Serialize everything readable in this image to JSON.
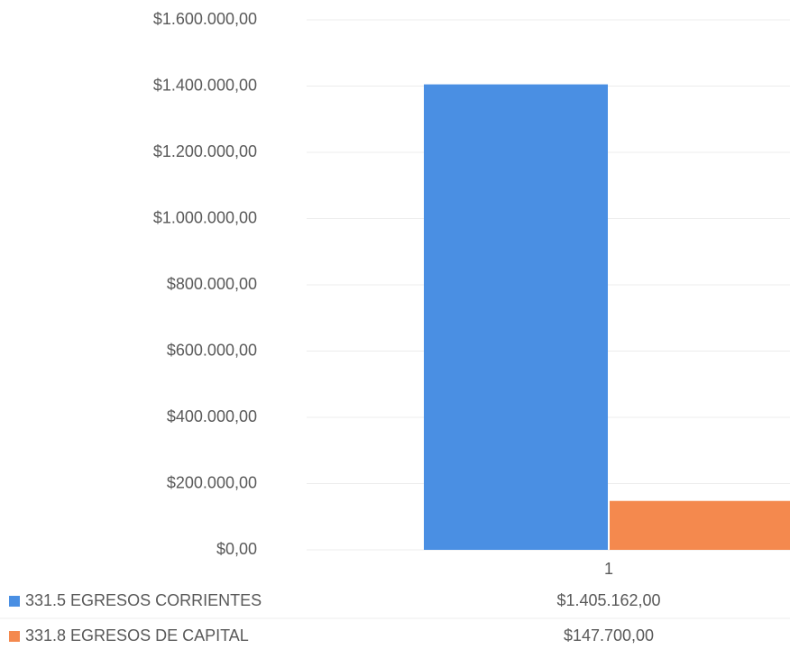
{
  "chart_data": {
    "type": "bar",
    "categories": [
      "1"
    ],
    "series": [
      {
        "name": "331.5 EGRESOS CORRIENTES",
        "color": "#4a8fe3",
        "values": [
          1405162
        ],
        "value_labels": [
          "$1.405.162,00"
        ]
      },
      {
        "name": "331.8 EGRESOS DE CAPITAL",
        "color": "#f4894e",
        "values": [
          147700
        ],
        "value_labels": [
          "$147.700,00"
        ]
      }
    ],
    "ylim": [
      0,
      1600000
    ],
    "yticks": [
      {
        "value": 0,
        "label": "$0,00"
      },
      {
        "value": 200000,
        "label": "$200.000,00"
      },
      {
        "value": 400000,
        "label": "$400.000,00"
      },
      {
        "value": 600000,
        "label": "$600.000,00"
      },
      {
        "value": 800000,
        "label": "$800.000,00"
      },
      {
        "value": 1000000,
        "label": "$1.000.000,00"
      },
      {
        "value": 1200000,
        "label": "$1.200.000,00"
      },
      {
        "value": 1400000,
        "label": "$1.400.000,00"
      },
      {
        "value": 1600000,
        "label": "$1.600.000,00"
      }
    ],
    "grid": true
  }
}
